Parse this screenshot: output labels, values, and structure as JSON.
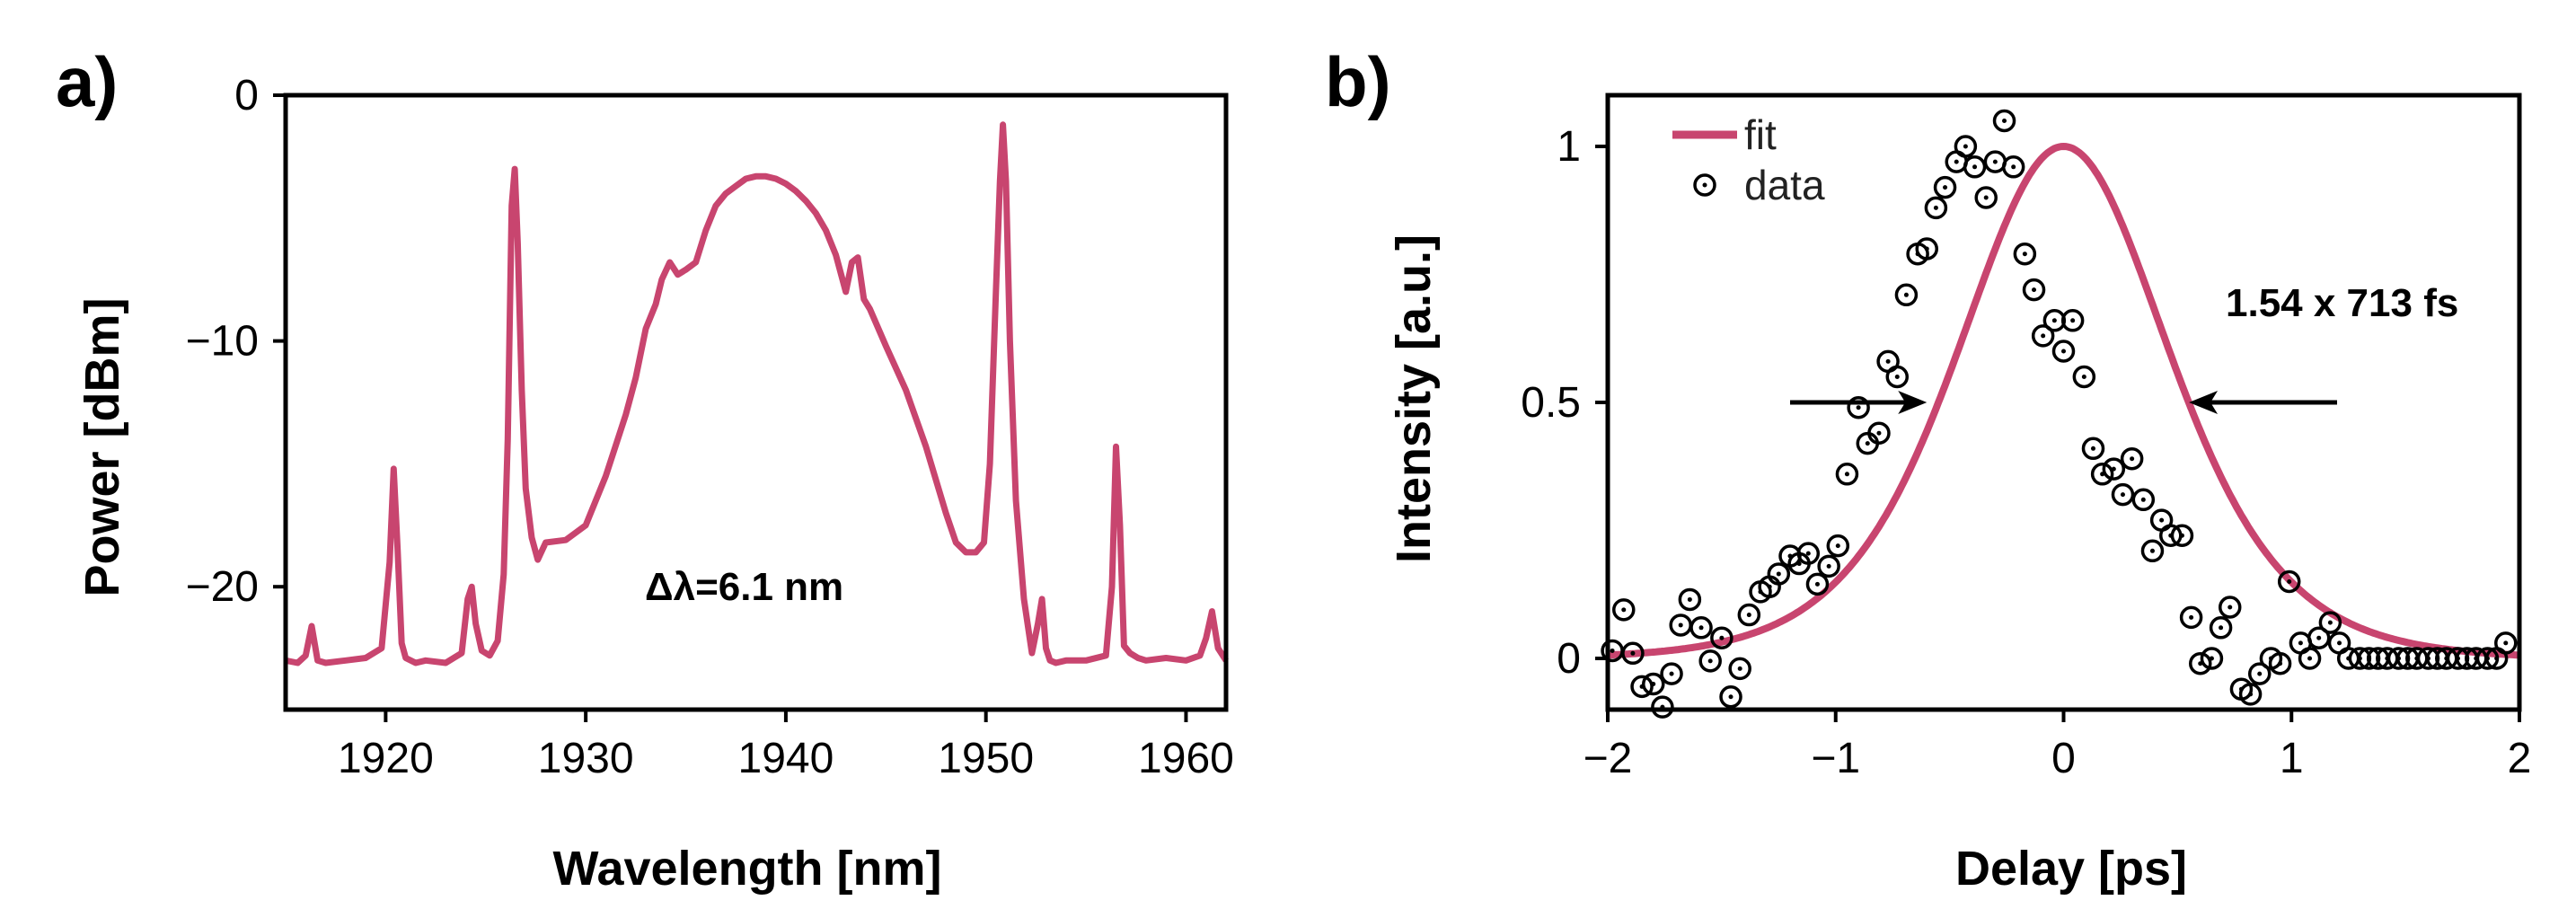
{
  "colors": {
    "series": "#c8456f",
    "axis": "#000000",
    "marker_stroke": "#000000"
  },
  "chart_data": [
    {
      "panel_label": "a)",
      "type": "line",
      "xlabel": "Wavelength [nm]",
      "ylabel": "Power [dBm]",
      "xlim": [
        1915,
        1962
      ],
      "ylim": [
        -25,
        0
      ],
      "xticks": [
        1920,
        1930,
        1940,
        1950,
        1960
      ],
      "xtick_labels": [
        "1920",
        "1930",
        "1940",
        "1950",
        "1960"
      ],
      "yticks": [
        0,
        -10,
        -20
      ],
      "ytick_labels": [
        "0",
        "−10",
        "−20"
      ],
      "annotation": "Δλ=6.1 nm",
      "grid": false,
      "series": [
        {
          "x": [
            1915,
            1915.6,
            1916,
            1916.3,
            1916.6,
            1917,
            1918,
            1919,
            1919.8,
            1920.2,
            1920.4,
            1920.6,
            1920.8,
            1921,
            1921.5,
            1922,
            1923,
            1923.8,
            1924.1,
            1924.3,
            1924.5,
            1924.8,
            1925.2,
            1925.6,
            1925.9,
            1926.1,
            1926.3,
            1926.45,
            1926.6,
            1926.8,
            1927,
            1927.3,
            1927.6,
            1928,
            1929,
            1930,
            1931,
            1932,
            1932.5,
            1933,
            1933.5,
            1933.8,
            1934.2,
            1934.6,
            1935,
            1935.5,
            1936,
            1936.5,
            1937,
            1937.5,
            1938,
            1938.5,
            1939,
            1939.5,
            1940,
            1940.5,
            1941,
            1941.5,
            1942,
            1942.5,
            1943,
            1943.3,
            1943.6,
            1943.9,
            1944.2,
            1945,
            1946,
            1947,
            1948,
            1948.5,
            1949,
            1949.5,
            1949.9,
            1950.2,
            1950.5,
            1950.7,
            1950.85,
            1951,
            1951.2,
            1951.5,
            1951.9,
            1952.3,
            1952.6,
            1952.8,
            1953,
            1953.2,
            1953.5,
            1954,
            1955,
            1956,
            1956.3,
            1956.5,
            1956.7,
            1956.9,
            1957.2,
            1957.6,
            1958,
            1959,
            1960,
            1960.7,
            1961,
            1961.3,
            1961.6,
            1962
          ],
          "y": [
            -23,
            -23.1,
            -22.8,
            -21.6,
            -23,
            -23.1,
            -23,
            -22.9,
            -22.5,
            -19,
            -15.2,
            -18.5,
            -22.3,
            -22.9,
            -23.1,
            -23,
            -23.1,
            -22.7,
            -20.5,
            -20,
            -21.5,
            -22.6,
            -22.8,
            -22.2,
            -19.5,
            -14,
            -4.5,
            -3,
            -6,
            -12,
            -16,
            -18,
            -18.9,
            -18.2,
            -18.1,
            -17.5,
            -15.5,
            -13,
            -11.5,
            -9.5,
            -8.5,
            -7.5,
            -6.8,
            -7.3,
            -7.1,
            -6.8,
            -5.5,
            -4.5,
            -4,
            -3.7,
            -3.4,
            -3.3,
            -3.3,
            -3.4,
            -3.6,
            -3.9,
            -4.3,
            -4.8,
            -5.5,
            -6.5,
            -8,
            -6.8,
            -6.6,
            -8.3,
            -8.7,
            -10.2,
            -12,
            -14.3,
            -17,
            -18.2,
            -18.6,
            -18.6,
            -18.2,
            -15,
            -8,
            -3.5,
            -1.2,
            -3.5,
            -10,
            -16.5,
            -20.5,
            -22.7,
            -21.5,
            -20.5,
            -22.5,
            -23,
            -23.1,
            -23,
            -23,
            -22.8,
            -20,
            -14.3,
            -17.5,
            -22.4,
            -22.7,
            -22.9,
            -23,
            -22.9,
            -23,
            -22.8,
            -22.1,
            -21,
            -22.5,
            -23
          ]
        }
      ]
    },
    {
      "panel_label": "b)",
      "type": "scatter",
      "xlabel": "Delay [ps]",
      "ylabel": "Intensity [a.u.]",
      "xlim": [
        -2,
        2
      ],
      "ylim": [
        -0.1,
        1.1
      ],
      "xticks": [
        -2,
        -1,
        0,
        1,
        2
      ],
      "xtick_labels": [
        "−2",
        "−1",
        "0",
        "1",
        "2"
      ],
      "yticks": [
        1,
        0.5,
        0
      ],
      "ytick_labels": [
        "1",
        "0.5",
        "0"
      ],
      "annotation": "1.54 x 713 fs",
      "legend_position": "top-left",
      "grid": false,
      "fit": {
        "name": "fit",
        "fwhm_ps": 1.098,
        "x_range": [
          -2,
          2
        ],
        "peak": 1.0,
        "center": 0.0
      },
      "half_max_arrows": {
        "y": 0.5,
        "left": [
          -1.2,
          -0.6
        ],
        "right": [
          1.2,
          0.55
        ]
      },
      "series": [
        {
          "name": "data",
          "x": [
            -1.98,
            -1.93,
            -1.89,
            -1.85,
            -1.8,
            -1.76,
            -1.72,
            -1.68,
            -1.64,
            -1.59,
            -1.55,
            -1.5,
            -1.46,
            -1.42,
            -1.38,
            -1.33,
            -1.29,
            -1.25,
            -1.2,
            -1.16,
            -1.12,
            -1.08,
            -1.03,
            -0.99,
            -0.95,
            -0.9,
            -0.86,
            -0.81,
            -0.77,
            -0.73,
            -0.69,
            -0.64,
            -0.6,
            -0.56,
            -0.52,
            -0.47,
            -0.43,
            -0.39,
            -0.34,
            -0.3,
            -0.26,
            -0.22,
            -0.17,
            -0.13,
            -0.09,
            -0.04,
            0,
            0.04,
            0.09,
            0.13,
            0.17,
            0.22,
            0.26,
            0.3,
            0.35,
            0.39,
            0.43,
            0.47,
            0.52,
            0.56,
            0.6,
            0.65,
            0.69,
            0.73,
            0.78,
            0.82,
            0.86,
            0.91,
            0.95,
            0.99,
            1.04,
            1.08,
            1.12,
            1.17,
            1.21,
            1.25,
            1.3,
            1.34,
            1.38,
            1.42,
            1.47,
            1.51,
            1.55,
            1.6,
            1.64,
            1.68,
            1.73,
            1.77,
            1.81,
            1.86,
            1.9,
            1.94
          ],
          "y": [
            0.015,
            0.095,
            0.01,
            -0.055,
            -0.05,
            -0.095,
            -0.03,
            0.065,
            0.115,
            0.06,
            -0.005,
            0.04,
            -0.075,
            -0.02,
            0.085,
            0.13,
            0.14,
            0.165,
            0.2,
            0.185,
            0.205,
            0.145,
            0.18,
            0.22,
            0.36,
            0.49,
            0.42,
            0.44,
            0.58,
            0.55,
            0.71,
            0.79,
            0.8,
            0.88,
            0.92,
            0.97,
            1.0,
            0.96,
            0.9,
            0.97,
            1.05,
            0.96,
            0.79,
            0.72,
            0.63,
            0.66,
            0.6,
            0.66,
            0.55,
            0.41,
            0.36,
            0.37,
            0.32,
            0.39,
            0.31,
            0.21,
            0.27,
            0.24,
            0.24,
            0.08,
            -0.01,
            0.0,
            0.06,
            0.1,
            -0.06,
            -0.07,
            -0.03,
            0.0,
            -0.01,
            0.15,
            0.03,
            0.0,
            0.04,
            0.07,
            0.03,
            0.0,
            0.0,
            0.0,
            0.0,
            0.0,
            0.0,
            0.0,
            0.0,
            0.0,
            0.0,
            0.0,
            0.0,
            0.0,
            0.0,
            0.0,
            0.0,
            0.03
          ]
        }
      ]
    }
  ]
}
